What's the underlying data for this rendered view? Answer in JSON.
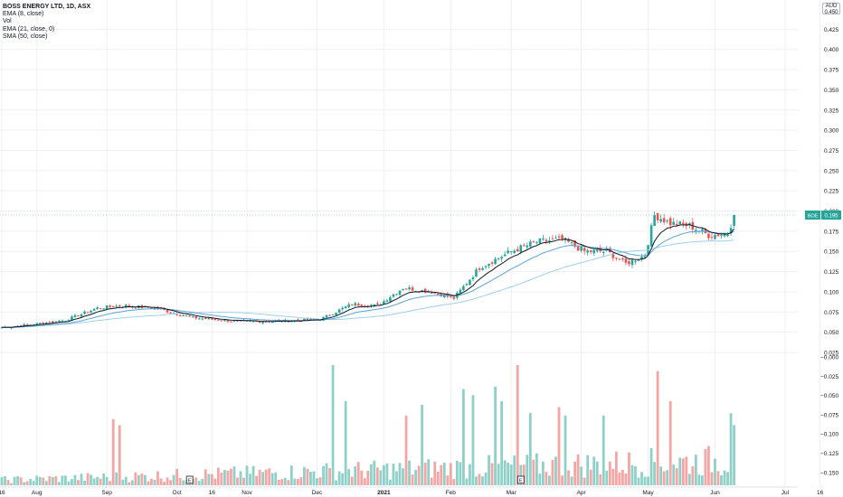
{
  "legend": {
    "title": "BOSS ENERGY LTD, 1D, ASX",
    "items": [
      "EMA (8, close)",
      "Vol",
      "EMA (21, close, 0)",
      "SMA (50, close)"
    ]
  },
  "currency": {
    "line1": "AUD",
    "line2": "0.450"
  },
  "last_price": {
    "symbol": "BOE",
    "value": "0.195"
  },
  "colors": {
    "up": "#26a69a",
    "down": "#ef5350",
    "vol_up": "#8fd1c8",
    "vol_down": "#f5a6a4",
    "ema8": "#131722",
    "ema21": "#5ba3d6",
    "sma50": "#9fd0ea",
    "grid": "#eef0f3",
    "axis_line": "#e0e3eb"
  },
  "chart_data": {
    "type": "candlestick",
    "price_axis": {
      "range": [
        0.025,
        0.45
      ],
      "ticks": [
        "0.425",
        "0.400",
        "0.375",
        "0.350",
        "0.325",
        "0.300",
        "0.275",
        "0.250",
        "0.225",
        "0.200",
        "0.175",
        "0.150",
        "0.125",
        "0.100",
        "0.075",
        "0.050",
        "0.025"
      ]
    },
    "volume_axis_labels": [
      "−0.000",
      "−0.025",
      "−0.050",
      "−0.075",
      "−0.100",
      "−0.125",
      "−0.150"
    ],
    "x_ticks": [
      {
        "label": "16",
        "bar": 0
      },
      {
        "label": "Aug",
        "bar": 11
      },
      {
        "label": "Sep",
        "bar": 33
      },
      {
        "label": "Oct",
        "bar": 55
      },
      {
        "label": "16",
        "bar": 66
      },
      {
        "label": "Nov",
        "bar": 77
      },
      {
        "label": "Dec",
        "bar": 99
      },
      {
        "label": "2021",
        "bar": 120,
        "bold": true
      },
      {
        "label": "Feb",
        "bar": 141
      },
      {
        "label": "Mar",
        "bar": 160
      },
      {
        "label": "Apr",
        "bar": 182
      },
      {
        "label": "May",
        "bar": 203
      },
      {
        "label": "Jun",
        "bar": 224
      },
      {
        "label": "Jul",
        "bar": 246
      },
      {
        "label": "16",
        "bar": 257
      }
    ],
    "event_markers": [
      {
        "label": "E",
        "bar": 59
      },
      {
        "label": "E",
        "bar": 163
      }
    ],
    "anchors": [
      {
        "bar": 0,
        "close": 0.056
      },
      {
        "bar": 10,
        "close": 0.06
      },
      {
        "bar": 20,
        "close": 0.065
      },
      {
        "bar": 30,
        "close": 0.08
      },
      {
        "bar": 38,
        "close": 0.083
      },
      {
        "bar": 48,
        "close": 0.08
      },
      {
        "bar": 60,
        "close": 0.068
      },
      {
        "bar": 75,
        "close": 0.063
      },
      {
        "bar": 90,
        "close": 0.064
      },
      {
        "bar": 100,
        "close": 0.066
      },
      {
        "bar": 110,
        "close": 0.085
      },
      {
        "bar": 118,
        "close": 0.083
      },
      {
        "bar": 126,
        "close": 0.105
      },
      {
        "bar": 135,
        "close": 0.1
      },
      {
        "bar": 142,
        "close": 0.092
      },
      {
        "bar": 150,
        "close": 0.13
      },
      {
        "bar": 160,
        "close": 0.15
      },
      {
        "bar": 168,
        "close": 0.162
      },
      {
        "bar": 176,
        "close": 0.165
      },
      {
        "bar": 183,
        "close": 0.15
      },
      {
        "bar": 190,
        "close": 0.15
      },
      {
        "bar": 196,
        "close": 0.135
      },
      {
        "bar": 202,
        "close": 0.145
      },
      {
        "bar": 205,
        "close": 0.195
      },
      {
        "bar": 210,
        "close": 0.185
      },
      {
        "bar": 216,
        "close": 0.182
      },
      {
        "bar": 222,
        "close": 0.17
      },
      {
        "bar": 228,
        "close": 0.172
      },
      {
        "bar": 230,
        "close": 0.195
      }
    ],
    "bar_count": 231,
    "volume_spikes": [
      {
        "bar": 35,
        "v": 0.55
      },
      {
        "bar": 37,
        "v": 0.5
      },
      {
        "bar": 104,
        "v": 1.0
      },
      {
        "bar": 108,
        "v": 0.7
      },
      {
        "bar": 127,
        "v": 0.58
      },
      {
        "bar": 132,
        "v": 0.67
      },
      {
        "bar": 145,
        "v": 0.8
      },
      {
        "bar": 148,
        "v": 0.75
      },
      {
        "bar": 155,
        "v": 0.82
      },
      {
        "bar": 157,
        "v": 0.7
      },
      {
        "bar": 162,
        "v": 1.0
      },
      {
        "bar": 166,
        "v": 0.6
      },
      {
        "bar": 175,
        "v": 0.65
      },
      {
        "bar": 177,
        "v": 0.58
      },
      {
        "bar": 189,
        "v": 0.58
      },
      {
        "bar": 206,
        "v": 0.95
      },
      {
        "bar": 210,
        "v": 0.7
      },
      {
        "bar": 229,
        "v": 0.6
      },
      {
        "bar": 230,
        "v": 0.5
      }
    ]
  }
}
